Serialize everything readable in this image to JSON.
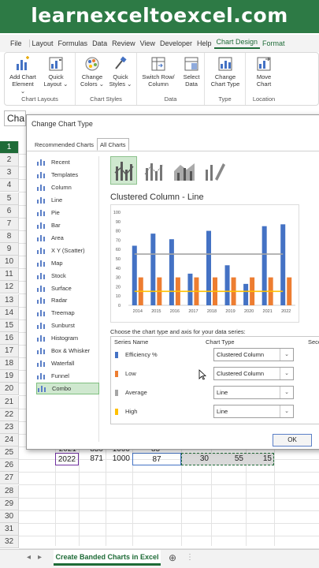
{
  "banner": {
    "text": "learnexceltoexcel.com"
  },
  "ribbon_tabs": [
    "File",
    "Layout",
    "Formulas",
    "Data",
    "Review",
    "View",
    "Developer",
    "Help",
    "Chart Design",
    "Format"
  ],
  "ribbon": {
    "add_chart_element": [
      "Add Chart",
      "Element"
    ],
    "quick_layout": [
      "Quick",
      "Layout"
    ],
    "change_colors": [
      "Change",
      "Colors"
    ],
    "quick_styles": [
      "Quick",
      "Styles"
    ],
    "switch_row_column": [
      "Switch Row/",
      "Column"
    ],
    "select_data": [
      "Select",
      "Data"
    ],
    "change_chart_type": [
      "Change",
      "Chart Type"
    ],
    "move_chart": [
      "Move",
      "Chart"
    ],
    "groups": {
      "chart_layouts": "Chart Layouts",
      "chart_styles": "Chart Styles",
      "data": "Data",
      "type": "Type",
      "location": "Location"
    }
  },
  "name_box": "Cha",
  "rows": [
    "1",
    "2",
    "3",
    "4",
    "5",
    "6",
    "7",
    "8",
    "9",
    "10",
    "11",
    "12",
    "13",
    "14",
    "15",
    "16",
    "17",
    "18",
    "19",
    "20",
    "21",
    "22",
    "23",
    "24",
    "25",
    "26",
    "27",
    "28",
    "29",
    "30",
    "31",
    "32",
    "33"
  ],
  "visible_row_28": {
    "year": "2022",
    "b": "871",
    "c": "1000",
    "d": "87",
    "e": "30",
    "f": "55",
    "g": "15"
  },
  "visible_row_27_partial": {
    "year": "2021",
    "b": "850",
    "c": "1000",
    "d": "85"
  },
  "sheet_tab": "Create Banded Charts in Excel",
  "dialog": {
    "title": "Change Chart Type",
    "tabs": {
      "recommended": "Recommended Charts",
      "all": "All Charts"
    },
    "chart_types": [
      "Recent",
      "Templates",
      "Column",
      "Line",
      "Pie",
      "Bar",
      "Area",
      "X Y (Scatter)",
      "Map",
      "Stock",
      "Surface",
      "Radar",
      "Treemap",
      "Sunburst",
      "Histogram",
      "Box & Whisker",
      "Waterfall",
      "Funnel",
      "Combo"
    ],
    "selected_type": "Combo",
    "preview_title": "Clustered Column - Line",
    "series_caption": "Choose the chart type and axis for your data series:",
    "columns": {
      "series_name": "Series Name",
      "chart_type": "Chart Type",
      "secondary": "Seco"
    },
    "series": [
      {
        "name": "Efficiency %",
        "type": "Clustered Column",
        "color": "#4472c4"
      },
      {
        "name": "Low",
        "type": "Clustered Column",
        "color": "#ed7d31"
      },
      {
        "name": "Average",
        "type": "Line",
        "color": "#a5a5a5"
      },
      {
        "name": "High",
        "type": "Line",
        "color": "#ffc000"
      }
    ],
    "ok_label": "OK"
  },
  "chart_data": {
    "type": "bar",
    "title": "Clustered Column - Line",
    "categories": [
      "2014",
      "2015",
      "2016",
      "2017",
      "2018",
      "2019",
      "2020",
      "2021",
      "2022"
    ],
    "ylim": [
      0,
      100
    ],
    "yticks": [
      "0",
      "10",
      "20",
      "30",
      "40",
      "50",
      "60",
      "70",
      "80",
      "90",
      "100"
    ],
    "series": [
      {
        "kind": "column",
        "color": "#4472c4",
        "values": [
          64,
          77,
          71,
          34,
          80,
          43,
          23,
          85,
          87
        ]
      },
      {
        "kind": "column",
        "color": "#ed7d31",
        "values": [
          30,
          30,
          30,
          30,
          30,
          30,
          30,
          30,
          30
        ]
      },
      {
        "kind": "line",
        "color": "#a5a5a5",
        "values": [
          55,
          55,
          55,
          55,
          55,
          55,
          55,
          55,
          55
        ]
      },
      {
        "kind": "line",
        "color": "#ffc000",
        "values": [
          15,
          15,
          15,
          15,
          15,
          15,
          15,
          15,
          15
        ]
      }
    ],
    "grid": false
  }
}
